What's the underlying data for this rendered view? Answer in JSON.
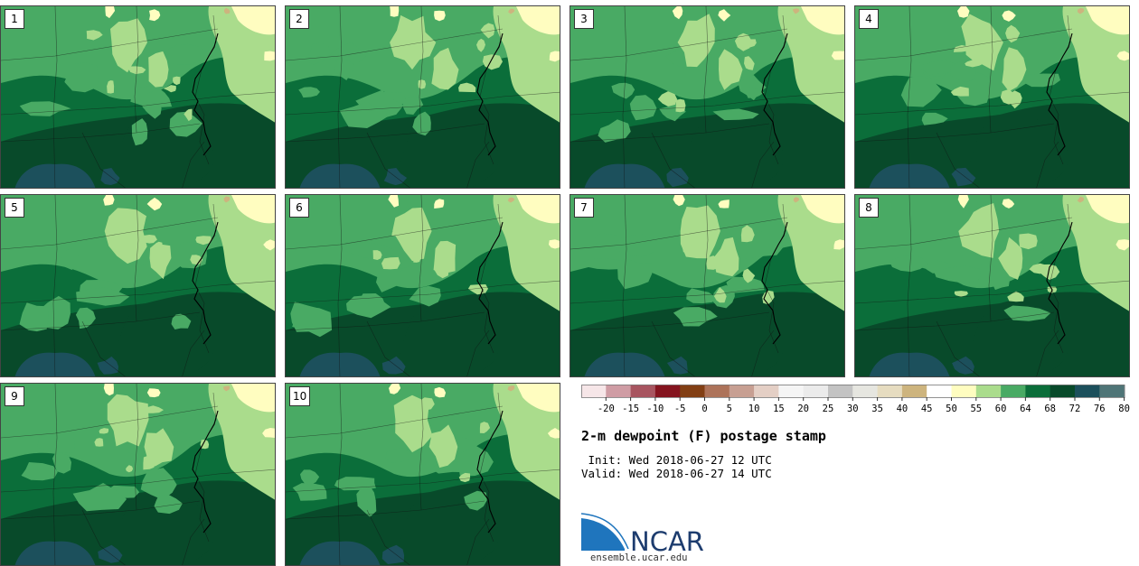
{
  "panels": [
    {
      "label": "1"
    },
    {
      "label": "2"
    },
    {
      "label": "3"
    },
    {
      "label": "4"
    },
    {
      "label": "5"
    },
    {
      "label": "6"
    },
    {
      "label": "7"
    },
    {
      "label": "8"
    },
    {
      "label": "9"
    },
    {
      "label": "10"
    }
  ],
  "colorbar": {
    "colors": [
      "#f6e6e8",
      "#cf9ca4",
      "#a85560",
      "#85141f",
      "#823f14",
      "#ad735a",
      "#c79f92",
      "#e4cfc5",
      "#f5f5f5",
      "#ebebeb",
      "#c3c3c3",
      "#e6e6e0",
      "#e6dcc0",
      "#cdb47e",
      "#ffffff",
      "#fffdc0",
      "#aadc8c",
      "#49aa64",
      "#0b6e3a",
      "#084a2a",
      "#1c505c",
      "#4f7577"
    ],
    "ticks": [
      "-20",
      "-15",
      "-10",
      "-5",
      "0",
      "5",
      "10",
      "15",
      "20",
      "25",
      "30",
      "35",
      "40",
      "45",
      "50",
      "55",
      "60",
      "64",
      "68",
      "72",
      "76",
      "80"
    ]
  },
  "title": "2-m dewpoint (F) postage stamp",
  "init_line": " Init: Wed 2018-06-27 12 UTC",
  "valid_line": "Valid: Wed 2018-06-27 14 UTC",
  "logo": {
    "name": "NCAR",
    "url": "ensemble.ucar.edu"
  }
}
